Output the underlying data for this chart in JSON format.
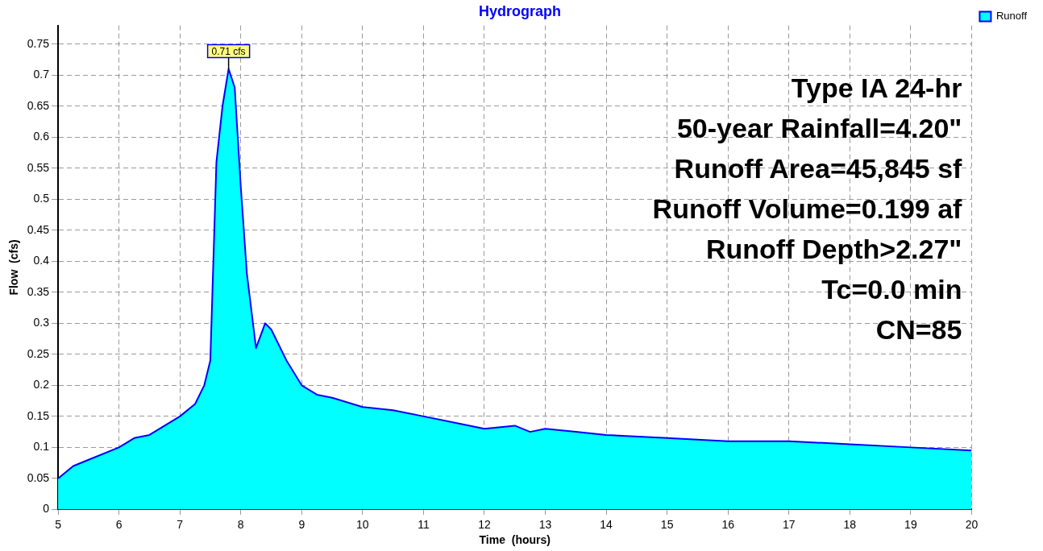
{
  "chart_data": {
    "type": "area",
    "title": "Hydrograph",
    "xlabel": "Time  (hours)",
    "ylabel": "Flow  (cfs)",
    "x": [
      5,
      5.25,
      5.5,
      6,
      6.25,
      6.5,
      6.75,
      7,
      7.25,
      7.4,
      7.5,
      7.6,
      7.7,
      7.8,
      7.9,
      8,
      8.1,
      8.25,
      8.4,
      8.5,
      8.75,
      9,
      9.25,
      9.5,
      10,
      10.5,
      11,
      11.5,
      12,
      12.5,
      12.75,
      13,
      13.5,
      14,
      15,
      16,
      17,
      18,
      19,
      20
    ],
    "series": [
      {
        "name": "Runoff",
        "color": "#00ffff",
        "values": [
          0.05,
          0.07,
          0.08,
          0.1,
          0.115,
          0.12,
          0.135,
          0.15,
          0.17,
          0.2,
          0.24,
          0.56,
          0.65,
          0.71,
          0.68,
          0.52,
          0.38,
          0.26,
          0.3,
          0.29,
          0.24,
          0.2,
          0.185,
          0.18,
          0.165,
          0.16,
          0.15,
          0.14,
          0.13,
          0.135,
          0.125,
          0.13,
          0.125,
          0.12,
          0.115,
          0.11,
          0.11,
          0.105,
          0.1,
          0.095
        ]
      }
    ],
    "xlim": [
      5,
      20
    ],
    "xticks": [
      5,
      6,
      7,
      8,
      9,
      10,
      11,
      12,
      13,
      14,
      15,
      16,
      17,
      18,
      19,
      20
    ],
    "ylim": [
      0,
      0.78
    ],
    "yticks": [
      0,
      0.05,
      0.1,
      0.15,
      0.2,
      0.25,
      0.3,
      0.35,
      0.4,
      0.45,
      0.5,
      0.55,
      0.6,
      0.65,
      0.7,
      0.75
    ],
    "grid": true,
    "legend": "top right",
    "annotations": [
      "Type IA 24-hr",
      "50-year Rainfall=4.20\"",
      "Runoff Area=45,845 sf",
      "Runoff Volume=0.199 af",
      "Runoff Depth>2.27\"",
      "Tc=0.0 min",
      "CN=85",
      {
        "text": "0.71 cfs",
        "x": 7.8,
        "y": 0.71
      }
    ]
  }
}
